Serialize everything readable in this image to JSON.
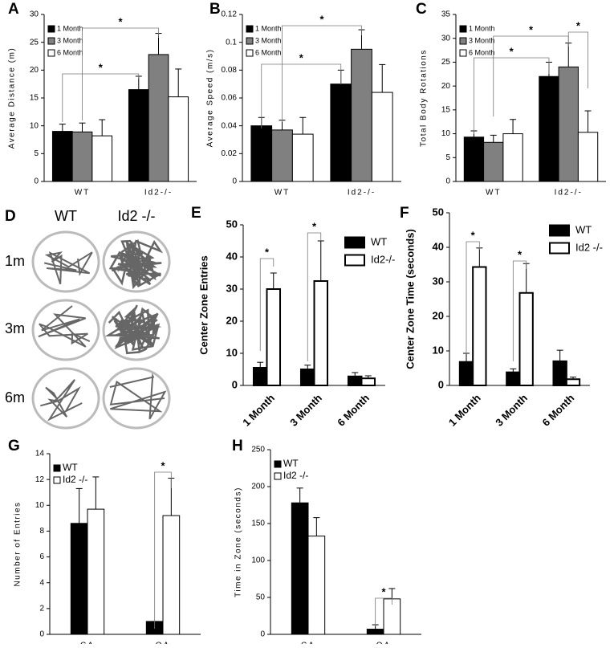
{
  "chart_data": [
    {
      "type": "bar",
      "panel": "A",
      "ylabel": "Average Distance (m)",
      "categories": [
        "WT",
        "Id2-/-"
      ],
      "series": [
        {
          "name": "1 Month",
          "color": "#000000",
          "values": [
            9,
            16.5
          ],
          "errors": [
            1.3,
            2.4
          ]
        },
        {
          "name": "3 Month",
          "color": "#808080",
          "values": [
            8.9,
            22.8
          ],
          "errors": [
            1.6,
            3.8
          ]
        },
        {
          "name": "6 Month",
          "color": "#ffffff",
          "values": [
            8.2,
            15.2
          ],
          "errors": [
            2.9,
            5
          ]
        }
      ],
      "ylim": [
        0,
        30
      ],
      "yticks": [
        0,
        5,
        10,
        15,
        20,
        25,
        30
      ],
      "legend": "upper left",
      "annotations": [
        "*",
        "*"
      ]
    },
    {
      "type": "bar",
      "panel": "B",
      "ylabel": "Average Speed (m/s)",
      "categories": [
        "WT",
        "Id2-/-"
      ],
      "series": [
        {
          "name": "1 Month",
          "color": "#000000",
          "values": [
            0.04,
            0.07
          ],
          "errors": [
            0.006,
            0.01
          ]
        },
        {
          "name": "3 Month",
          "color": "#808080",
          "values": [
            0.037,
            0.095
          ],
          "errors": [
            0.007,
            0.014
          ]
        },
        {
          "name": "6 Month",
          "color": "#ffffff",
          "values": [
            0.034,
            0.064
          ],
          "errors": [
            0.012,
            0.02
          ]
        }
      ],
      "ylim": [
        0,
        0.12
      ],
      "yticks": [
        0,
        0.02,
        0.04,
        0.06,
        0.08,
        0.1,
        0.12
      ],
      "legend": "upper left",
      "annotations": [
        "*",
        "*"
      ]
    },
    {
      "type": "bar",
      "panel": "C",
      "ylabel": "Total Body Rotations",
      "categories": [
        "WT",
        "Id2-/-"
      ],
      "series": [
        {
          "name": "1 Month",
          "color": "#000000",
          "values": [
            9.3,
            22
          ],
          "errors": [
            1.3,
            3
          ]
        },
        {
          "name": "3 Month",
          "color": "#808080",
          "values": [
            8.2,
            24
          ],
          "errors": [
            1.5,
            5
          ]
        },
        {
          "name": "6 Month",
          "color": "#ffffff",
          "values": [
            10,
            10.3
          ],
          "errors": [
            3,
            4.5
          ]
        }
      ],
      "ylim": [
        0,
        35
      ],
      "yticks": [
        0,
        5,
        10,
        15,
        20,
        25,
        30,
        35
      ],
      "legend": "upper left",
      "annotations": [
        "*",
        "*",
        "*"
      ]
    },
    {
      "type": "bar",
      "panel": "E",
      "ylabel": "Center Zone Entries",
      "categories": [
        "1 Month",
        "3 Month",
        "6 Month"
      ],
      "series": [
        {
          "name": "WT",
          "color": "#000000",
          "values": [
            5.5,
            5,
            2.8
          ],
          "errors": [
            1.7,
            1.3,
            1.2
          ]
        },
        {
          "name": "Id2-/-",
          "color": "#ffffff",
          "values": [
            30,
            32.5,
            2.2
          ],
          "errors": [
            5,
            12.5,
            0.8
          ]
        }
      ],
      "ylim": [
        0,
        50
      ],
      "yticks": [
        0,
        10,
        20,
        30,
        40,
        50
      ],
      "legend": "upper right",
      "annotations": [
        "*",
        "*"
      ]
    },
    {
      "type": "bar",
      "panel": "F",
      "ylabel": "Center Zone Time (seconds)",
      "categories": [
        "1 Month",
        "3 Month",
        "6 Month"
      ],
      "series": [
        {
          "name": "WT",
          "color": "#000000",
          "values": [
            6.8,
            3.8,
            7
          ],
          "errors": [
            2.5,
            1,
            3.2
          ]
        },
        {
          "name": "Id2 -/-",
          "color": "#ffffff",
          "values": [
            34.3,
            26.8,
            1.8
          ],
          "errors": [
            5.5,
            8.5,
            0.6
          ]
        }
      ],
      "ylim": [
        0,
        50
      ],
      "yticks": [
        0,
        10,
        20,
        30,
        40,
        50
      ],
      "legend": "upper right",
      "annotations": [
        "*",
        "*"
      ]
    },
    {
      "type": "bar",
      "panel": "G",
      "ylabel": "Number of Entries",
      "categories": [
        "CA",
        "OA"
      ],
      "series": [
        {
          "name": "WT",
          "color": "#000000",
          "values": [
            8.6,
            1
          ],
          "errors": [
            2.7,
            0
          ]
        },
        {
          "name": "Id2 -/-",
          "color": "#ffffff",
          "values": [
            9.7,
            9.2
          ],
          "errors": [
            2.5,
            2.9
          ]
        }
      ],
      "ylim": [
        0,
        14
      ],
      "yticks": [
        0,
        2,
        4,
        6,
        8,
        10,
        12,
        14
      ],
      "legend": "upper left",
      "annotations": [
        "*"
      ]
    },
    {
      "type": "bar",
      "panel": "H",
      "ylabel": "Time in Zone (seconds)",
      "categories": [
        "CA",
        "OA"
      ],
      "series": [
        {
          "name": "WT",
          "color": "#000000",
          "values": [
            178,
            7
          ],
          "errors": [
            20,
            6
          ]
        },
        {
          "name": "Id2 -/-",
          "color": "#ffffff",
          "values": [
            133,
            48
          ],
          "errors": [
            25,
            14
          ]
        }
      ],
      "ylim": [
        0,
        250
      ],
      "yticks": [
        0,
        50,
        100,
        150,
        200,
        250
      ],
      "legend": "upper left",
      "annotations": [
        "*"
      ]
    }
  ],
  "panel_d": {
    "panel": "D",
    "columns": [
      "WT",
      "Id2 -/-"
    ],
    "rows": [
      "1m",
      "3m",
      "6m"
    ]
  }
}
